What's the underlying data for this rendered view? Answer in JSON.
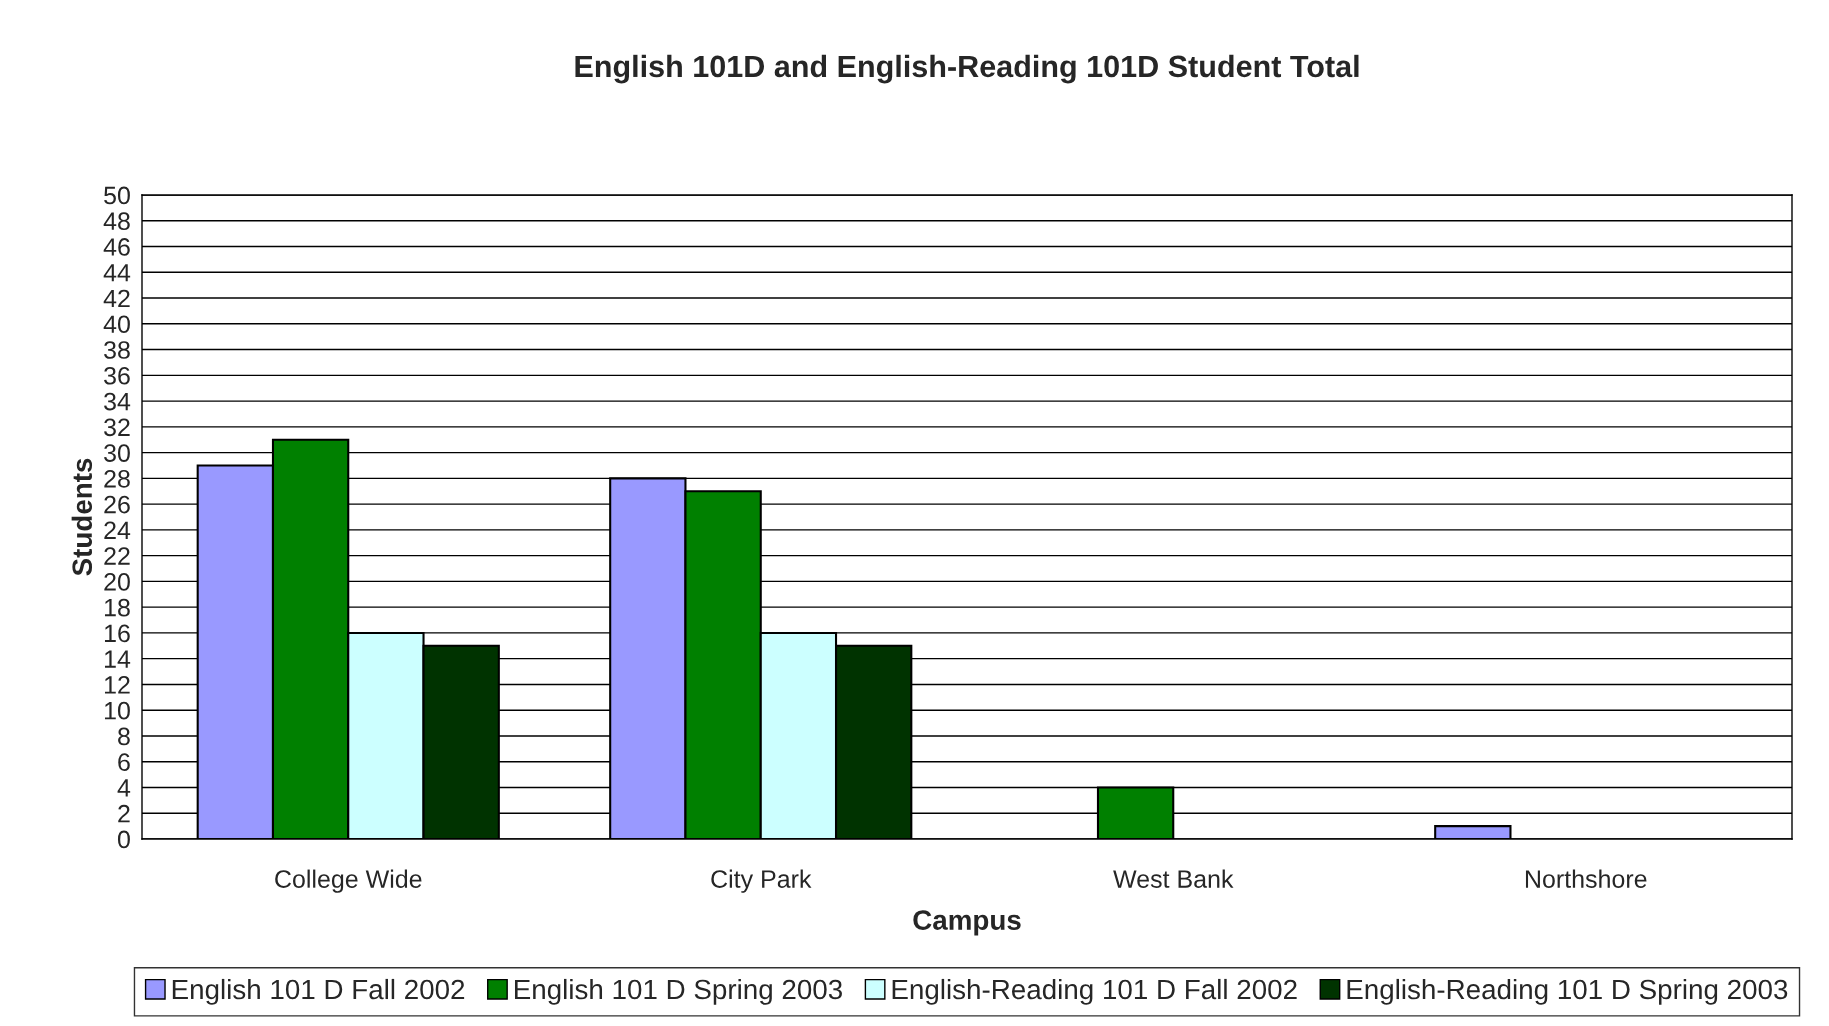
{
  "chart_data": {
    "type": "bar",
    "title": "English 101D and English-Reading 101D Student Total",
    "xlabel": "Campus",
    "ylabel": "Students",
    "categories": [
      "College Wide",
      "City Park",
      "West Bank",
      "Northshore"
    ],
    "series": [
      {
        "name": "English 101 D Fall 2002",
        "color": "#9999ff",
        "values": [
          29,
          28,
          0,
          1
        ]
      },
      {
        "name": "English 101 D Spring 2003",
        "color": "#008000",
        "values": [
          31,
          27,
          4,
          0
        ]
      },
      {
        "name": "English-Reading 101 D Fall 2002",
        "color": "#ccffff",
        "values": [
          16,
          16,
          0,
          0
        ]
      },
      {
        "name": "English-Reading 101 D Spring 2003",
        "color": "#003300",
        "values": [
          15,
          15,
          0,
          0
        ]
      }
    ],
    "ylim": [
      0,
      50
    ],
    "yticks": [
      0,
      2,
      4,
      6,
      8,
      10,
      12,
      14,
      16,
      18,
      20,
      22,
      24,
      26,
      28,
      30,
      32,
      34,
      36,
      38,
      40,
      42,
      44,
      46,
      48,
      50
    ],
    "grid": "y",
    "legend": "bottom"
  }
}
